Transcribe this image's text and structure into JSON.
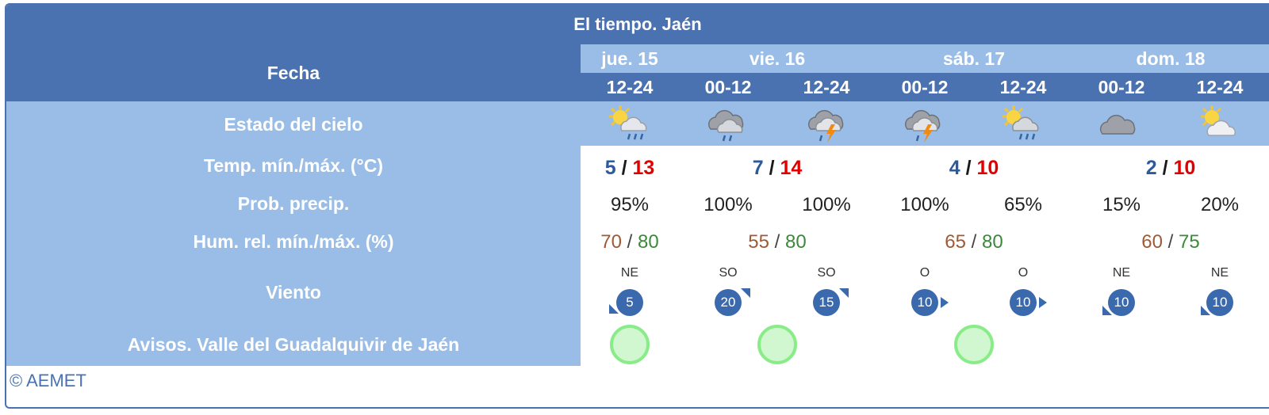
{
  "title": "El tiempo. Jaén",
  "header": {
    "fecha_label": "Fecha",
    "days": [
      {
        "label": "jue. 15",
        "span": 1
      },
      {
        "label": "vie. 16",
        "span": 2
      },
      {
        "label": "sáb. 17",
        "span": 2
      },
      {
        "label": "dom. 18",
        "span": 2
      }
    ],
    "periods": [
      "12-24",
      "00-12",
      "12-24",
      "00-12",
      "12-24",
      "00-12",
      "12-24"
    ]
  },
  "rows": {
    "sky_label": "Estado del cielo",
    "temp_label": "Temp. mín./máx. (°C)",
    "prob_label": "Prob. precip.",
    "hum_label": "Hum. rel. mín./máx. (%)",
    "wind_label": "Viento",
    "aviso_label": "Avisos. Valle del Guadalquivir de Jaén"
  },
  "sky": [
    {
      "icon": "sun-cloud-rain-icon"
    },
    {
      "icon": "cloud-rain-icon"
    },
    {
      "icon": "cloud-storm-icon"
    },
    {
      "icon": "cloud-storm-icon"
    },
    {
      "icon": "sun-cloud-rain-icon"
    },
    {
      "icon": "cloud-icon"
    },
    {
      "icon": "sun-cloud-icon"
    }
  ],
  "temps": [
    {
      "min": "5",
      "max": "13",
      "sep": "/"
    },
    {
      "min": "7",
      "max": "14",
      "sep": "/"
    },
    {
      "min": "4",
      "max": "10",
      "sep": "/"
    },
    {
      "min": "2",
      "max": "10",
      "sep": "/"
    }
  ],
  "prob": [
    "95%",
    "100%",
    "100%",
    "100%",
    "65%",
    "15%",
    "20%"
  ],
  "hum": [
    {
      "min": "70",
      "max": "80",
      "sep": "/"
    },
    {
      "min": "55",
      "max": "80",
      "sep": "/"
    },
    {
      "min": "65",
      "max": "80",
      "sep": "/"
    },
    {
      "min": "60",
      "max": "75",
      "sep": "/"
    }
  ],
  "wind": [
    {
      "dir": "NE",
      "speed": "5"
    },
    {
      "dir": "SO",
      "speed": "20"
    },
    {
      "dir": "SO",
      "speed": "15"
    },
    {
      "dir": "O",
      "speed": "10"
    },
    {
      "dir": "O",
      "speed": "10"
    },
    {
      "dir": "NE",
      "speed": "10"
    },
    {
      "dir": "NE",
      "speed": "10"
    }
  ],
  "avisos": [
    "green",
    "green",
    "green"
  ],
  "colors": {
    "header": "#4a72b0",
    "light": "#99bde6",
    "min": "#2d5a9a",
    "max": "#e00000",
    "aviso": "#88ec88"
  },
  "footer": "© AEMET"
}
